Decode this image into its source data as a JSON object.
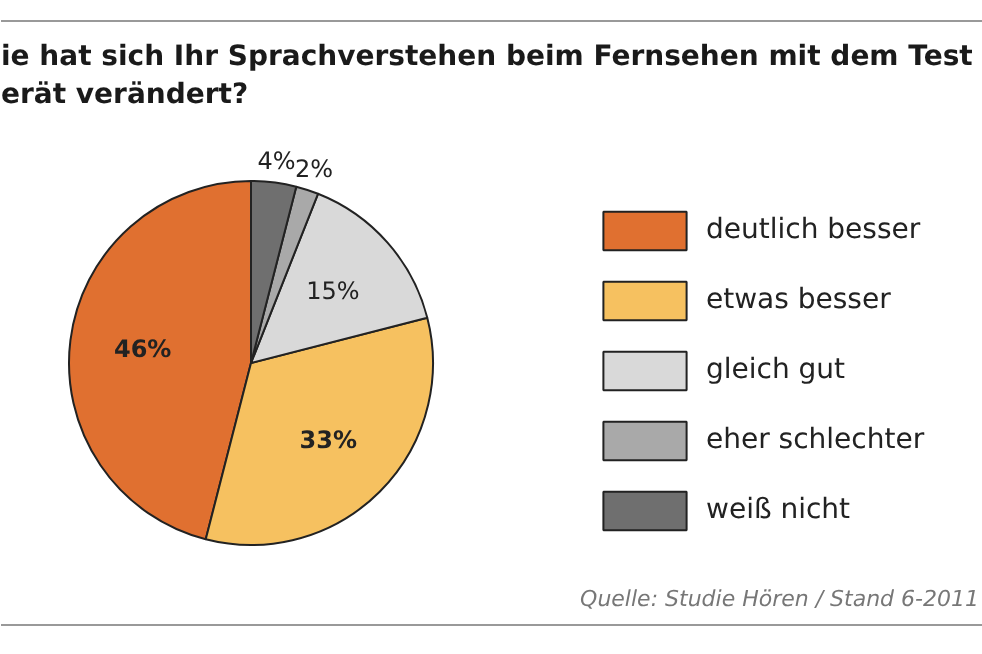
{
  "chart_data": {
    "type": "pie",
    "title": "ie hat sich Ihr Sprachverstehen beim Fernsehen mit dem Test\nerät verändert?",
    "categories": [
      "deutlich besser",
      "etwas besser",
      "gleich gut",
      "eher schlechter",
      "weiß nicht"
    ],
    "values": [
      46,
      33,
      15,
      2,
      4
    ],
    "value_labels": [
      "46%",
      "33%",
      "15%",
      "2%",
      "4%"
    ],
    "colors": [
      "#e07030",
      "#f6c160",
      "#d9d9d9",
      "#a9a9a9",
      "#6f6f6f"
    ],
    "legend": "right",
    "annotations": [
      "Quelle: Studie Hören / Stand 6-2011"
    ]
  }
}
